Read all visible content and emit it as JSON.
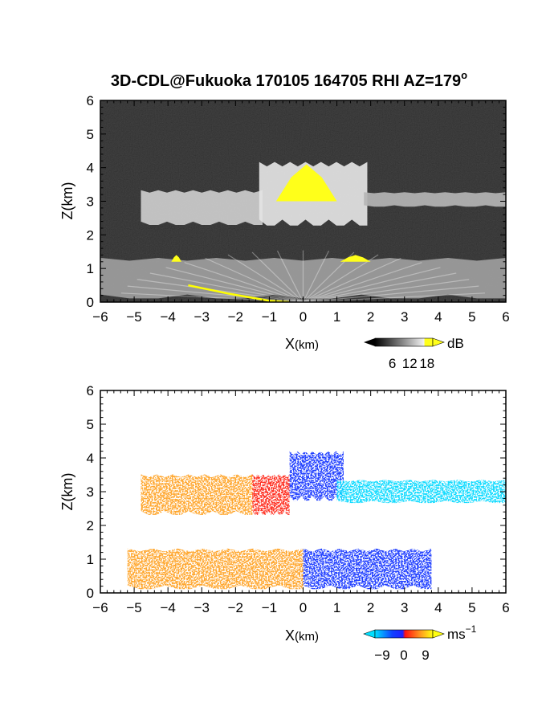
{
  "figure": {
    "title": "3D-CDL@Fukuoka 170105 164705 RHI AZ=179",
    "title_superscript": "o"
  },
  "chart_data": [
    {
      "type": "heatmap",
      "name": "snr-rhi",
      "xlabel_main": "X",
      "xlabel_unit": "(km)",
      "ylabel": "Z(km)",
      "xlim": [
        -6,
        6
      ],
      "ylim": [
        0,
        6
      ],
      "x_ticks": [
        -6,
        -5,
        -4,
        -3,
        -2,
        -1,
        0,
        1,
        2,
        3,
        4,
        5,
        6
      ],
      "y_ticks": [
        0,
        1,
        2,
        3,
        4,
        5,
        6
      ],
      "colorbar": {
        "unit": "dB",
        "ticks": [
          6,
          12,
          18
        ],
        "range": [
          0,
          20
        ]
      },
      "colors": {
        "background": "#1c1c1c",
        "echo": "#e0e0e0",
        "saturated": "#ffff1a",
        "ground_line": "#ffff00"
      },
      "echo_regions": [
        {
          "label": "cloud-layer-west",
          "x": [
            -4.8,
            -1.2
          ],
          "z": [
            2.2,
            3.4
          ],
          "value": 14
        },
        {
          "label": "cloud-dome",
          "x": [
            -1.3,
            1.9
          ],
          "z": [
            2.1,
            4.3
          ],
          "value": 16
        },
        {
          "label": "cloud-layer-east",
          "x": [
            1.8,
            6.0
          ],
          "z": [
            2.8,
            3.3
          ],
          "value": 12
        },
        {
          "label": "boundary-layer",
          "x": [
            -6.0,
            6.0
          ],
          "z": [
            0.0,
            1.4
          ],
          "value": 10
        }
      ],
      "saturated_regions": [
        {
          "x": [
            -0.8,
            1.0
          ],
          "z": [
            3.0,
            4.1
          ]
        },
        {
          "x": [
            -3.9,
            -3.6
          ],
          "z": [
            1.2,
            1.4
          ]
        },
        {
          "x": [
            1.1,
            2.0
          ],
          "z": [
            1.2,
            1.4
          ]
        }
      ]
    },
    {
      "type": "heatmap",
      "name": "doppler-velocity-rhi",
      "xlabel_main": "X",
      "xlabel_unit": "(km)",
      "ylabel": "Z(km)",
      "xlim": [
        -6,
        6
      ],
      "ylim": [
        0,
        6
      ],
      "x_ticks": [
        -6,
        -5,
        -4,
        -3,
        -2,
        -1,
        0,
        1,
        2,
        3,
        4,
        5,
        6
      ],
      "y_ticks": [
        0,
        1,
        2,
        3,
        4,
        5,
        6
      ],
      "colorbar": {
        "unit": "ms",
        "unit_superscript": "−1",
        "ticks": [
          "−9",
          "0",
          "9"
        ],
        "range": [
          -12,
          12
        ]
      },
      "colors": {
        "negative_strong": "#00d8ff",
        "negative": "#1030ff",
        "zero": "#ff2010",
        "positive": "#ffa020",
        "positive_strong": "#ffff00"
      },
      "velocity_regions": [
        {
          "label": "cloud-west",
          "x": [
            -4.8,
            -1.5
          ],
          "z": [
            2.2,
            3.6
          ],
          "velocity": 6.5
        },
        {
          "label": "cloud-dome-west",
          "x": [
            -1.5,
            -0.4
          ],
          "z": [
            2.2,
            3.6
          ],
          "velocity": 2
        },
        {
          "label": "cloud-dome-east",
          "x": [
            -0.4,
            1.2
          ],
          "z": [
            2.6,
            4.3
          ],
          "velocity": -5
        },
        {
          "label": "cloud-east",
          "x": [
            1.0,
            6.0
          ],
          "z": [
            2.6,
            3.4
          ],
          "velocity": -8
        },
        {
          "label": "bl-west",
          "x": [
            -5.2,
            0.0
          ],
          "z": [
            0.0,
            1.4
          ],
          "velocity": 4.5
        },
        {
          "label": "bl-east",
          "x": [
            0.0,
            3.8
          ],
          "z": [
            0.0,
            1.4
          ],
          "velocity": -5
        }
      ]
    }
  ]
}
